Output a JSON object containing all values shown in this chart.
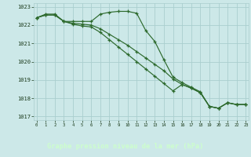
{
  "hours": [
    0,
    1,
    2,
    3,
    4,
    5,
    6,
    7,
    8,
    9,
    10,
    11,
    12,
    13,
    14,
    15,
    16,
    17,
    18,
    19,
    20,
    21,
    22,
    23
  ],
  "line1": [
    1022.4,
    1022.6,
    1022.6,
    1022.2,
    1022.2,
    1022.2,
    1022.2,
    1022.6,
    1022.7,
    1022.75,
    1022.75,
    1022.65,
    1021.7,
    1021.1,
    1020.1,
    1019.15,
    1018.85,
    1018.6,
    1018.35,
    1017.55,
    1017.45,
    1017.75,
    1017.65,
    1017.65
  ],
  "line2": [
    1022.4,
    1022.55,
    1022.55,
    1022.2,
    1022.1,
    1022.05,
    1022.0,
    1021.8,
    1021.5,
    1021.2,
    1020.9,
    1020.55,
    1020.2,
    1019.85,
    1019.5,
    1019.05,
    1018.75,
    1018.55,
    1018.3,
    1017.55,
    1017.45,
    1017.75,
    1017.65,
    1017.65
  ],
  "line3": [
    1022.4,
    1022.55,
    1022.55,
    1022.2,
    1022.05,
    1021.95,
    1021.9,
    1021.6,
    1021.2,
    1020.8,
    1020.4,
    1020.0,
    1019.6,
    1019.2,
    1018.8,
    1018.4,
    1018.75,
    1018.55,
    1018.3,
    1017.55,
    1017.45,
    1017.75,
    1017.65,
    1017.65
  ],
  "line_color": "#2d6a2d",
  "bg_color": "#cce8e8",
  "grid_color": "#aacece",
  "xlabel": "Graphe pression niveau de la mer (hPa)",
  "xlabel_fg": "#ccffcc",
  "xlabel_bg": "#2d6a2d",
  "tick_color": "#1a3a1a",
  "ylim": [
    1016.8,
    1023.2
  ],
  "yticks": [
    1017,
    1018,
    1019,
    1020,
    1021,
    1022,
    1023
  ],
  "xlim": [
    -0.3,
    23.3
  ],
  "xticks": [
    0,
    1,
    2,
    3,
    4,
    5,
    6,
    7,
    8,
    9,
    10,
    11,
    12,
    13,
    14,
    15,
    16,
    17,
    18,
    19,
    20,
    21,
    22,
    23
  ]
}
